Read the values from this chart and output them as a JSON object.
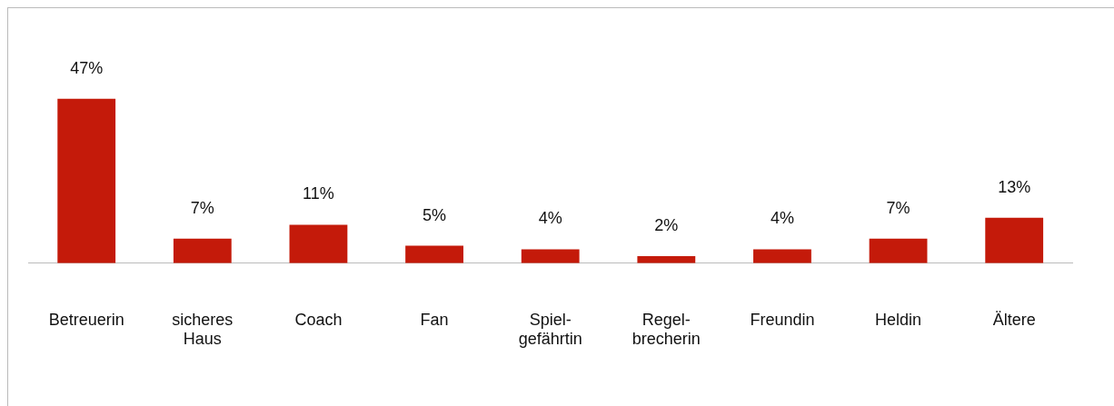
{
  "chart_data": {
    "type": "bar",
    "categories": [
      "Betreuerin",
      "sicheres Haus",
      "Coach",
      "Fan",
      "Spiel-gefährtin",
      "Regel-brecherin",
      "Freundin",
      "Heldin",
      "Ältere"
    ],
    "values": [
      47,
      7,
      11,
      5,
      4,
      2,
      4,
      7,
      13
    ],
    "value_labels": [
      "47%",
      "7%",
      "11%",
      "5%",
      "4%",
      "2%",
      "4%",
      "7%",
      "13%"
    ],
    "color": "#c41a0a",
    "grid": false,
    "legend": false
  }
}
